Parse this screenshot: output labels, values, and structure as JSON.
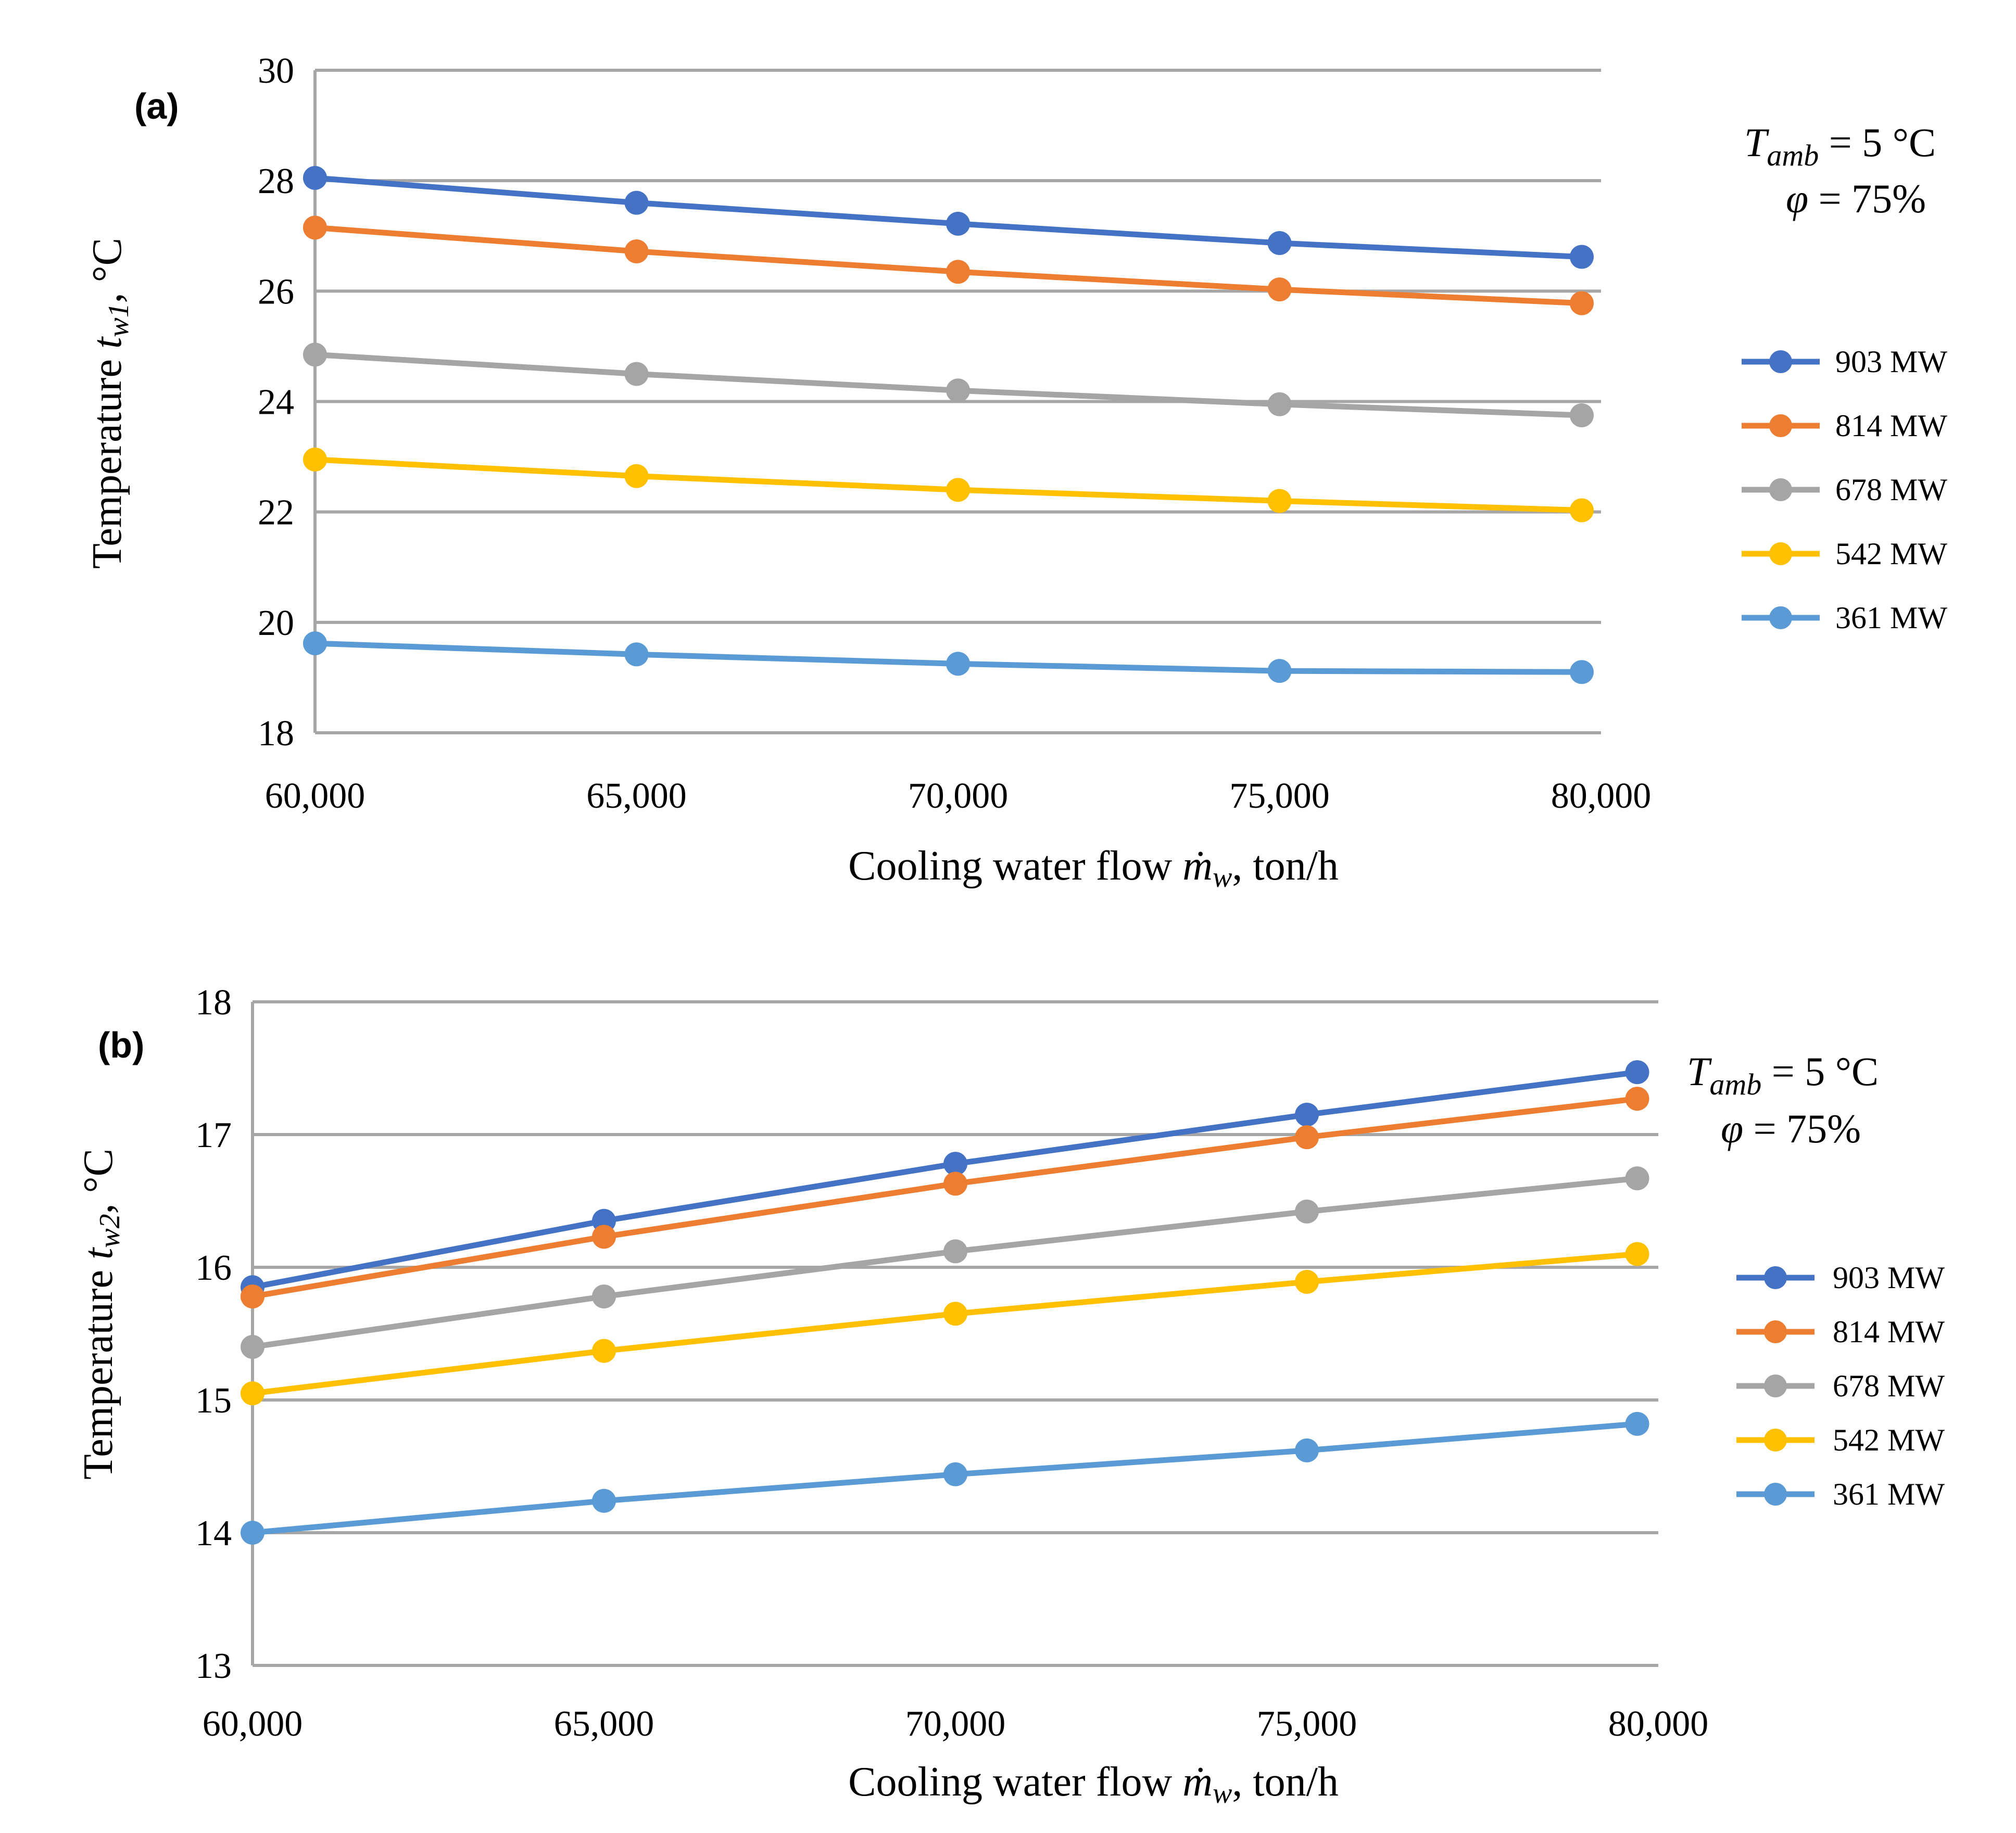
{
  "chart_data": [
    {
      "type": "line",
      "panel_label": "(a)",
      "xlabel": "Cooling water flow",
      "xlabel_symbol": "ṁ",
      "xlabel_sub": "w",
      "xlabel_unit": ", ton/h",
      "ylabel": "Temperature",
      "ylabel_symbol": "t",
      "ylabel_sub": "w1",
      "ylabel_unit": ", °C",
      "x_ticks": [
        "60,000",
        "65,000",
        "70,000",
        "75,000",
        "80,000"
      ],
      "xlim": [
        60000,
        80000
      ],
      "ylim": [
        18,
        30
      ],
      "y_ticks": [
        "18",
        "20",
        "22",
        "24",
        "26",
        "28",
        "30"
      ],
      "y_tick_values": [
        18,
        20,
        22,
        24,
        26,
        28,
        30
      ],
      "grid": true,
      "conditions": {
        "t_sym": "T",
        "t_sub": "amb",
        "t_val": " = 5 °C",
        "phi_sym": "φ",
        "phi_val": " = 75%"
      },
      "x": [
        60000,
        65000,
        70000,
        75000,
        79700
      ],
      "series": [
        {
          "name": "903 MW",
          "color": "#4472c4",
          "values": [
            28.05,
            27.6,
            27.22,
            26.87,
            26.62
          ]
        },
        {
          "name": "814 MW",
          "color": "#ed7d31",
          "values": [
            27.15,
            26.72,
            26.35,
            26.03,
            25.78
          ]
        },
        {
          "name": "678 MW",
          "color": "#a5a5a5",
          "values": [
            24.85,
            24.5,
            24.2,
            23.95,
            23.75
          ]
        },
        {
          "name": "542 MW",
          "color": "#ffc000",
          "values": [
            22.95,
            22.65,
            22.4,
            22.2,
            22.03
          ]
        },
        {
          "name": "361 MW",
          "color": "#5b9bd5",
          "values": [
            19.62,
            19.42,
            19.25,
            19.12,
            19.1
          ]
        }
      ]
    },
    {
      "type": "line",
      "panel_label": "(b)",
      "xlabel": "Cooling water flow",
      "xlabel_symbol": "ṁ",
      "xlabel_sub": "w",
      "xlabel_unit": ", ton/h",
      "ylabel": "Temperature",
      "ylabel_symbol": "t",
      "ylabel_sub": "w2",
      "ylabel_unit": ", °C",
      "x_ticks": [
        "60,000",
        "65,000",
        "70,000",
        "75,000",
        "80,000"
      ],
      "xlim": [
        60000,
        80000
      ],
      "ylim": [
        13,
        18
      ],
      "y_ticks": [
        "13",
        "14",
        "15",
        "16",
        "17",
        "18"
      ],
      "y_tick_values": [
        13,
        14,
        15,
        16,
        17,
        18
      ],
      "grid": true,
      "conditions": {
        "t_sym": "T",
        "t_sub": "amb",
        "t_val": " = 5 °C",
        "phi_sym": "φ",
        "phi_val": " = 75%"
      },
      "x": [
        60000,
        65000,
        70000,
        75000,
        79700
      ],
      "series": [
        {
          "name": "903 MW",
          "color": "#4472c4",
          "values": [
            15.85,
            16.35,
            16.78,
            17.15,
            17.47
          ]
        },
        {
          "name": "814 MW",
          "color": "#ed7d31",
          "values": [
            15.78,
            16.23,
            16.63,
            16.98,
            17.27
          ]
        },
        {
          "name": "678 MW",
          "color": "#a5a5a5",
          "values": [
            15.4,
            15.78,
            16.12,
            16.42,
            16.67
          ]
        },
        {
          "name": "542 MW",
          "color": "#ffc000",
          "values": [
            15.05,
            15.37,
            15.65,
            15.89,
            16.1
          ]
        },
        {
          "name": "361 MW",
          "color": "#5b9bd5",
          "values": [
            14.0,
            14.24,
            14.44,
            14.62,
            14.82
          ]
        }
      ]
    }
  ]
}
